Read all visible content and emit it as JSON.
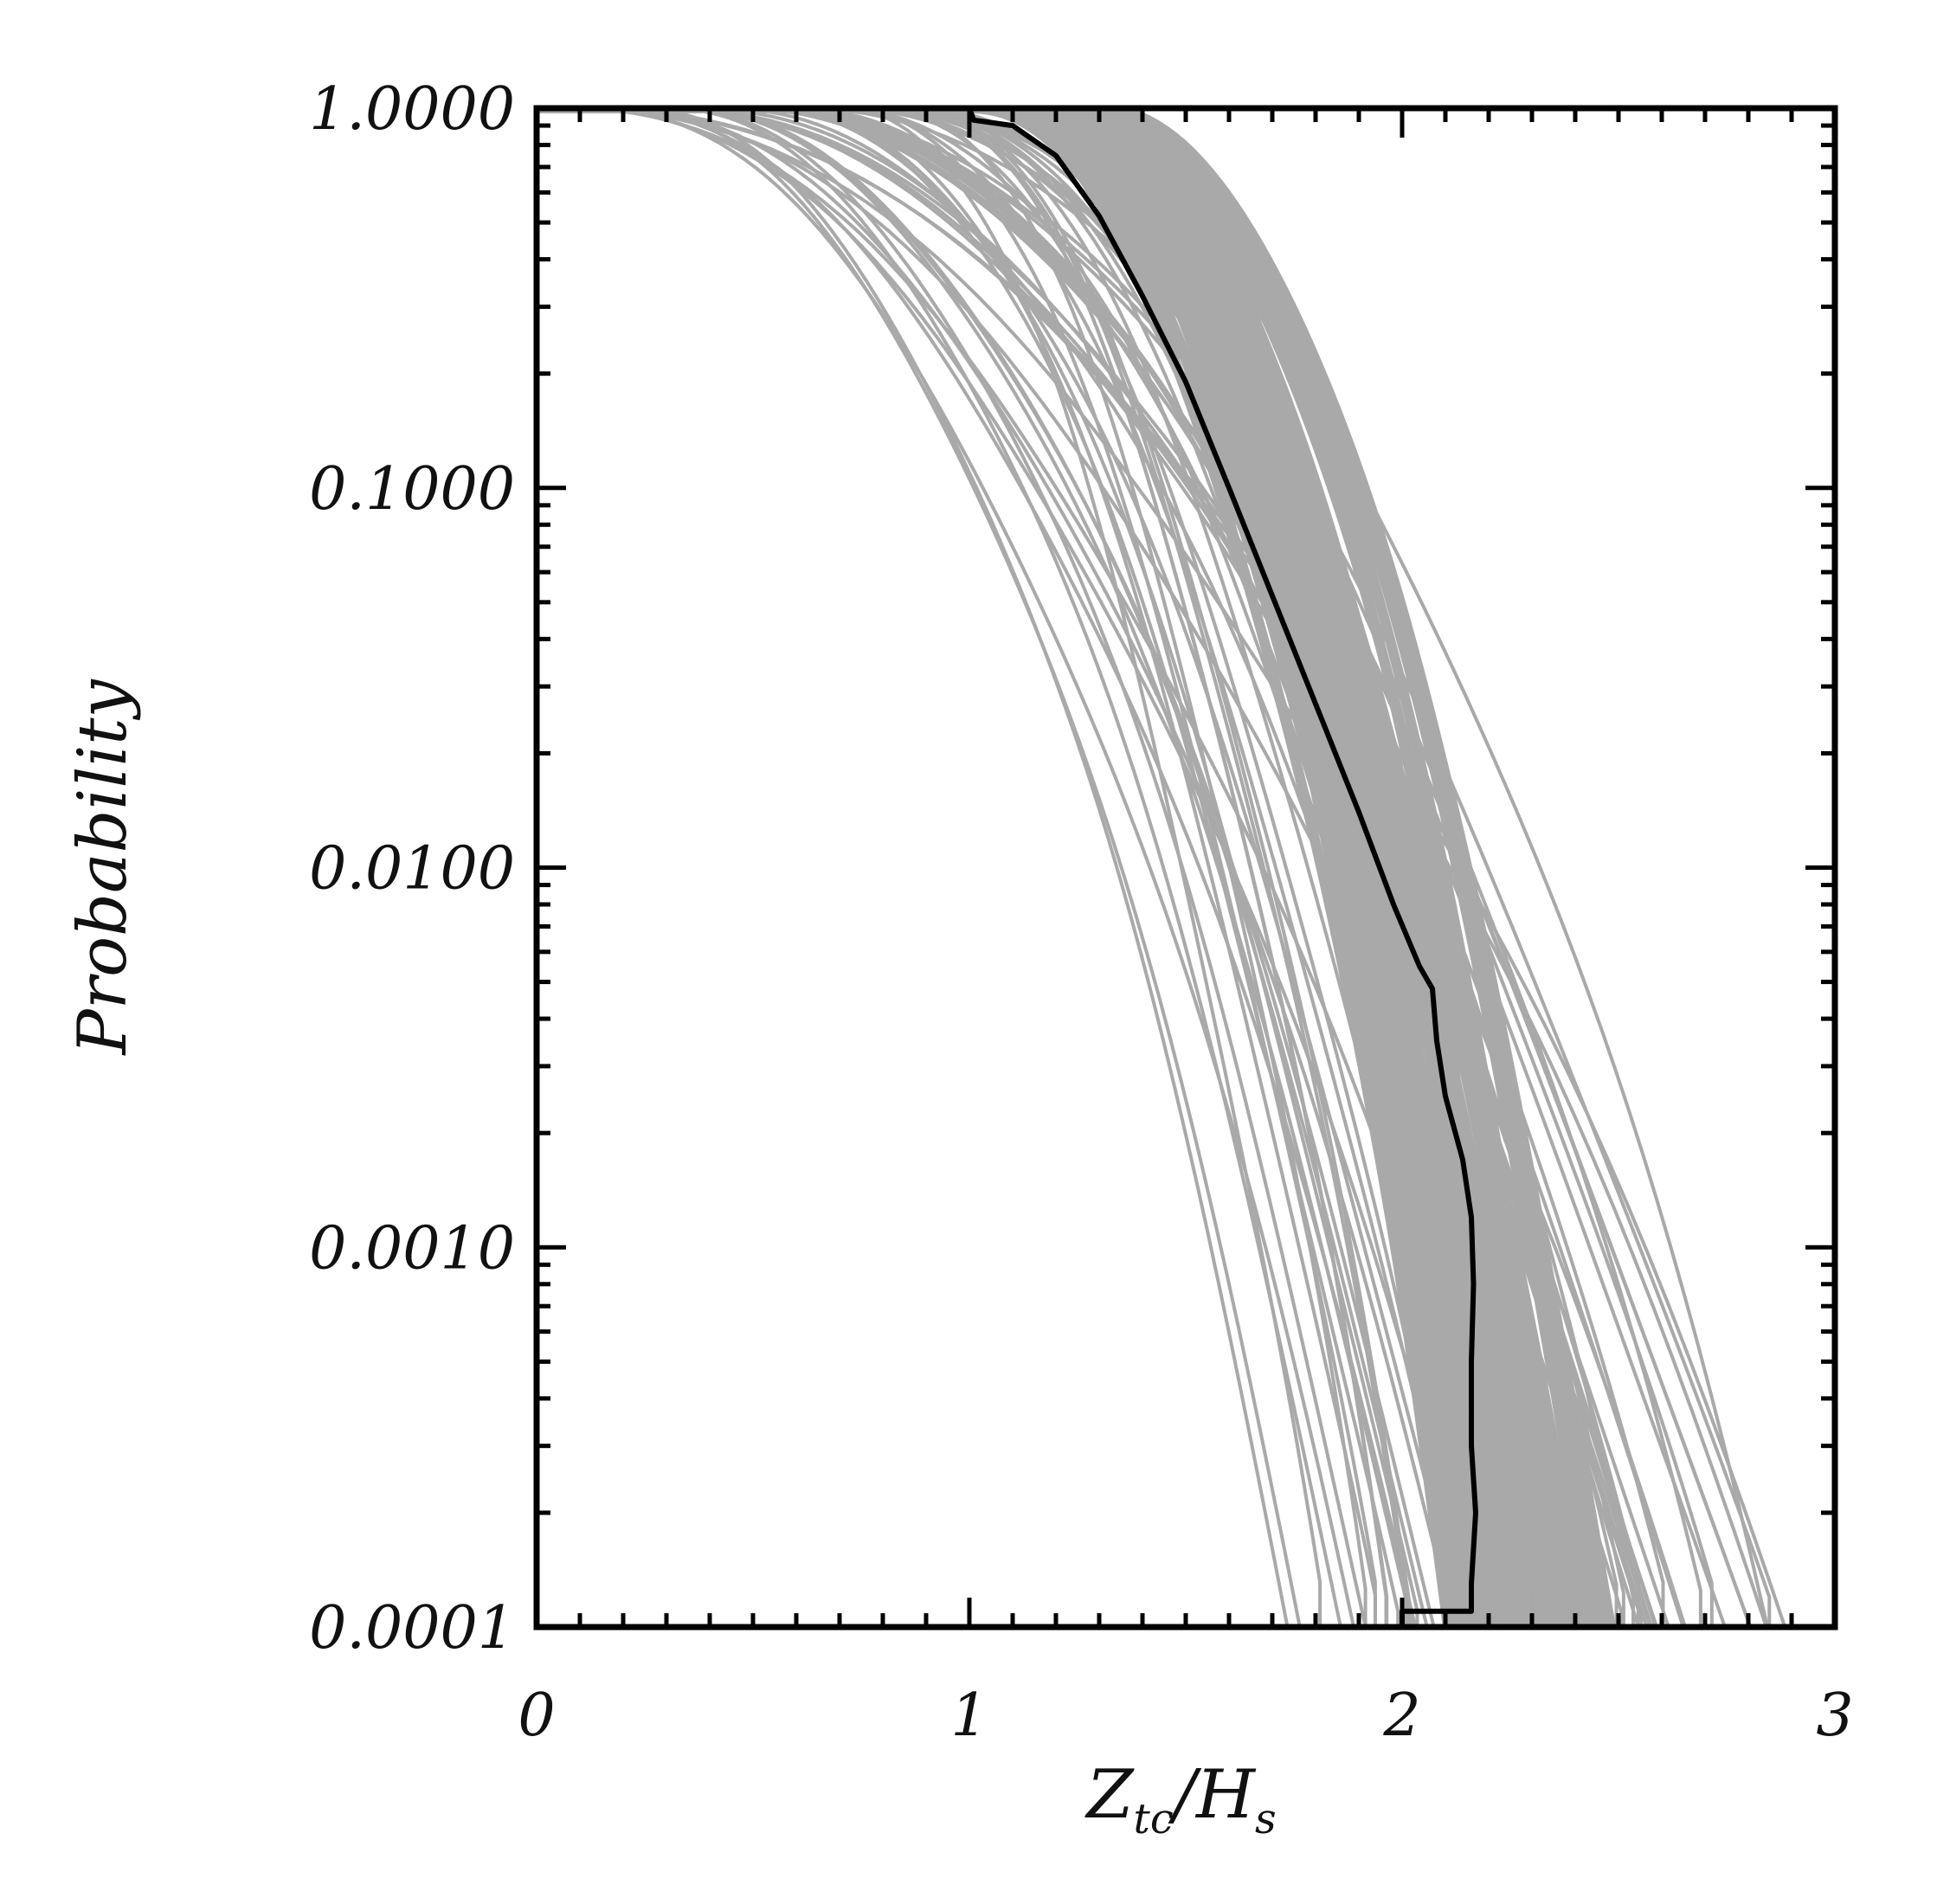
{
  "chart_data": {
    "type": "line",
    "title": "",
    "xlabel": {
      "main": "Z",
      "sub": "tc",
      "slash": "/H",
      "sub2": "s"
    },
    "ylabel": "Probability",
    "x_range": [
      0,
      3
    ],
    "y_range": [
      0.0001,
      1.0
    ],
    "y_scale": "log",
    "x_ticks": [
      {
        "value": 0,
        "label": "0"
      },
      {
        "value": 1,
        "label": "1"
      },
      {
        "value": 2,
        "label": "2"
      },
      {
        "value": 3,
        "label": "3"
      }
    ],
    "y_ticks": [
      {
        "value": 1.0,
        "label": "1.0000"
      },
      {
        "value": 0.1,
        "label": "0.1000"
      },
      {
        "value": 0.01,
        "label": "0.0100"
      },
      {
        "value": 0.001,
        "label": "0.0010"
      },
      {
        "value": 0.0001,
        "label": "0.0001"
      }
    ],
    "grid": false,
    "legend": "none",
    "ensemble": {
      "color": "#a9a9a9",
      "count": 60,
      "x_at_p1_range": [
        0.05,
        0.95
      ],
      "x_at_p0001_range": [
        1.75,
        2.93
      ],
      "dense_band": {
        "x_at_p1": [
          1.0,
          1.3
        ],
        "x_at_p0001": [
          2.1,
          2.5
        ]
      }
    },
    "series": [
      {
        "color": "#000000",
        "points": [
          [
            0.0,
            1.0
          ],
          [
            0.6,
            1.0
          ],
          [
            1.0,
            1.0
          ],
          [
            1.01,
            0.93
          ],
          [
            1.1,
            0.9
          ],
          [
            1.2,
            0.75
          ],
          [
            1.3,
            0.52
          ],
          [
            1.4,
            0.32
          ],
          [
            1.5,
            0.19
          ],
          [
            1.6,
            0.1
          ],
          [
            1.7,
            0.052
          ],
          [
            1.8,
            0.027
          ],
          [
            1.9,
            0.014
          ],
          [
            1.98,
            0.008
          ],
          [
            2.04,
            0.0055
          ],
          [
            2.07,
            0.0048
          ],
          [
            2.08,
            0.0035
          ],
          [
            2.1,
            0.0025
          ],
          [
            2.14,
            0.0017
          ],
          [
            2.16,
            0.0012
          ],
          [
            2.165,
            0.0008
          ],
          [
            2.16,
            0.0005
          ],
          [
            2.16,
            0.0003
          ],
          [
            2.17,
            0.0002
          ],
          [
            2.16,
            0.00013
          ],
          [
            2.16,
            0.00011
          ],
          [
            2.0,
            0.00011
          ],
          [
            2.0,
            0.0001
          ],
          [
            2.2,
            0.0001
          ]
        ]
      }
    ]
  }
}
